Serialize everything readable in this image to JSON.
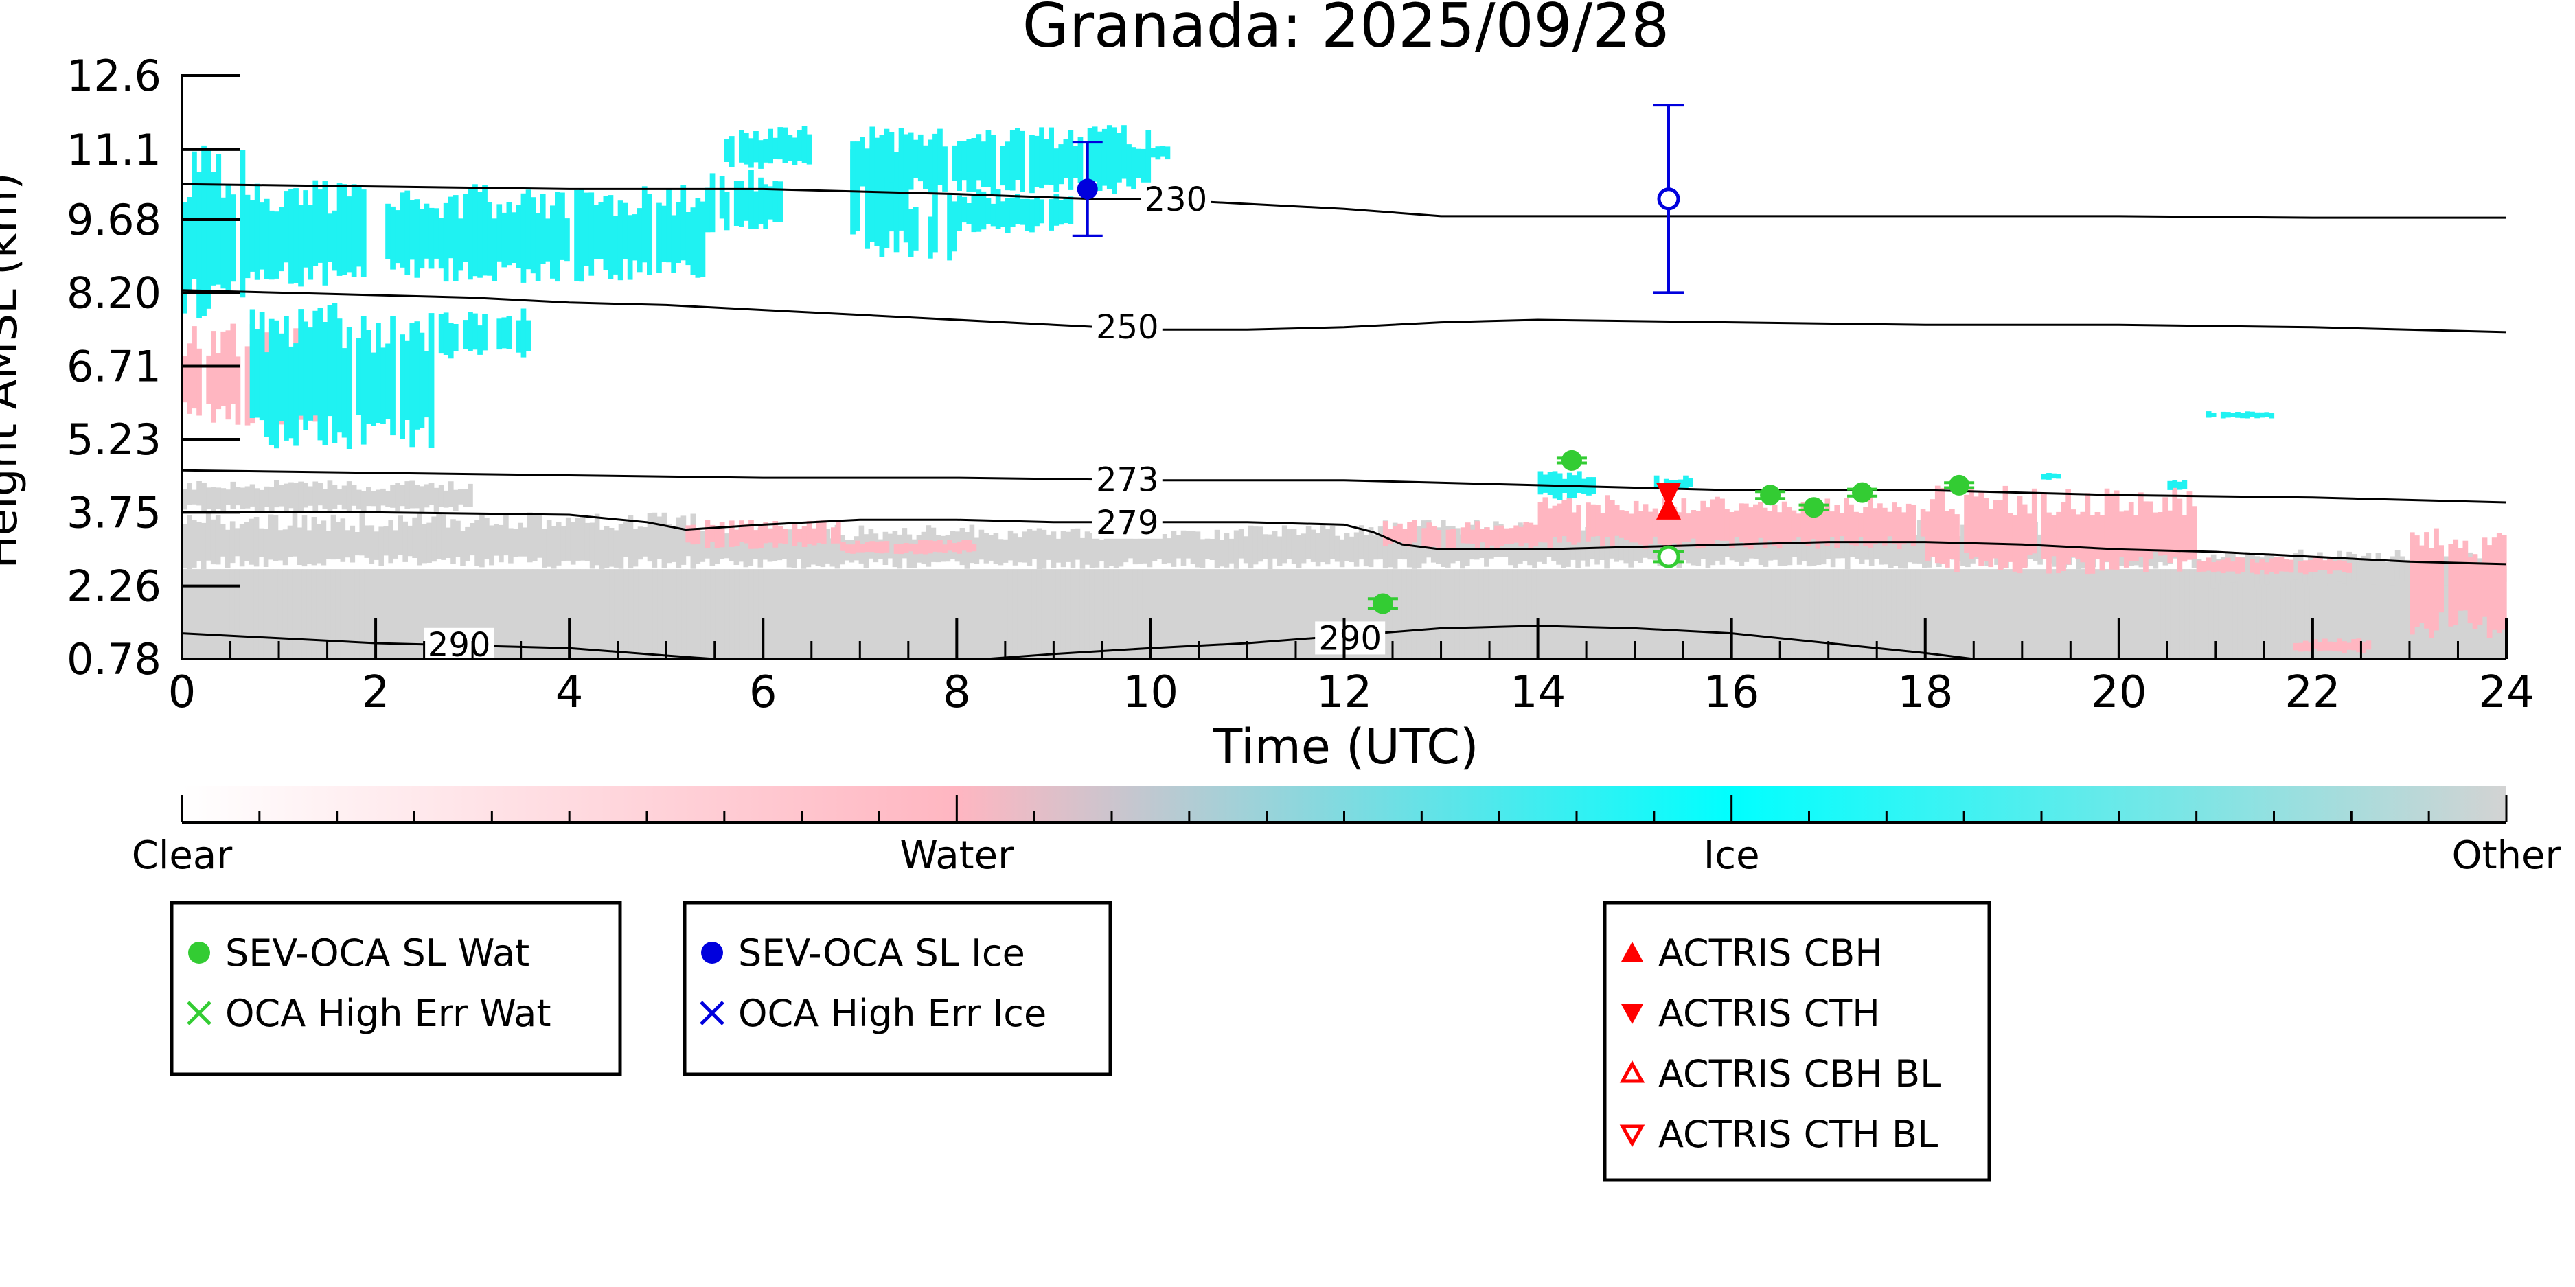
{
  "chart_data": {
    "type": "heatmap",
    "title": "Granada: 2025/09/28",
    "xlabel": "Time (UTC)",
    "ylabel": "Height AMSL (km)",
    "xlim": [
      0,
      24
    ],
    "ylim": [
      0.78,
      12.6
    ],
    "x_ticks": [
      0,
      2,
      4,
      6,
      8,
      10,
      12,
      14,
      16,
      18,
      20,
      22,
      24
    ],
    "y_ticks": [
      "0.78",
      "2.26",
      "3.75",
      "5.23",
      "6.71",
      "8.20",
      "9.68",
      "11.1",
      "12.6"
    ],
    "colorbar": {
      "labels": [
        "Clear",
        "Water",
        "Ice",
        "Other"
      ],
      "colors": [
        "#ffffff",
        "#ffb6c1",
        "#00ffff",
        "#d3d3d3"
      ]
    },
    "category_colors": {
      "water": "#ffb6c1",
      "ice": "#1ff2f2",
      "other": "#d3d3d3"
    },
    "isotherms": [
      {
        "label": "230",
        "points": [
          [
            0,
            10.4
          ],
          [
            2,
            10.35
          ],
          [
            4,
            10.3
          ],
          [
            6,
            10.3
          ],
          [
            8,
            10.2
          ],
          [
            9.4,
            10.1
          ],
          [
            10,
            10.1
          ],
          [
            11,
            10.0
          ],
          [
            12,
            9.9
          ],
          [
            13,
            9.75
          ],
          [
            14,
            9.75
          ],
          [
            16,
            9.75
          ],
          [
            18,
            9.75
          ],
          [
            20,
            9.75
          ],
          [
            22,
            9.72
          ],
          [
            24,
            9.72
          ]
        ],
        "label_at": 9.9
      },
      {
        "label": "250",
        "points": [
          [
            0,
            8.25
          ],
          [
            1,
            8.2
          ],
          [
            2,
            8.15
          ],
          [
            3,
            8.1
          ],
          [
            4,
            8.0
          ],
          [
            5,
            7.95
          ],
          [
            6,
            7.85
          ],
          [
            7,
            7.75
          ],
          [
            8,
            7.65
          ],
          [
            9,
            7.55
          ],
          [
            10,
            7.45
          ],
          [
            11,
            7.45
          ],
          [
            12,
            7.5
          ],
          [
            13,
            7.6
          ],
          [
            14,
            7.65
          ],
          [
            16,
            7.6
          ],
          [
            18,
            7.55
          ],
          [
            20,
            7.55
          ],
          [
            22,
            7.5
          ],
          [
            24,
            7.4
          ]
        ],
        "label_at": 9.4
      },
      {
        "label": "273",
        "points": [
          [
            0,
            4.6
          ],
          [
            2,
            4.55
          ],
          [
            4,
            4.5
          ],
          [
            6,
            4.45
          ],
          [
            8,
            4.45
          ],
          [
            10,
            4.4
          ],
          [
            12,
            4.4
          ],
          [
            14,
            4.3
          ],
          [
            16,
            4.2
          ],
          [
            18,
            4.2
          ],
          [
            20,
            4.1
          ],
          [
            22,
            4.05
          ],
          [
            24,
            3.95
          ]
        ],
        "label_at": 9.4
      },
      {
        "label": "279",
        "points": [
          [
            0,
            3.75
          ],
          [
            2,
            3.75
          ],
          [
            4,
            3.7
          ],
          [
            4.8,
            3.55
          ],
          [
            5.2,
            3.4
          ],
          [
            6,
            3.5
          ],
          [
            7,
            3.6
          ],
          [
            8,
            3.6
          ],
          [
            9,
            3.55
          ],
          [
            10,
            3.55
          ],
          [
            11,
            3.55
          ],
          [
            12,
            3.5
          ],
          [
            12.3,
            3.35
          ],
          [
            12.6,
            3.1
          ],
          [
            13,
            3.0
          ],
          [
            14,
            3.0
          ],
          [
            15,
            3.05
          ],
          [
            16,
            3.1
          ],
          [
            17,
            3.15
          ],
          [
            18,
            3.15
          ],
          [
            19,
            3.1
          ],
          [
            20,
            3.0
          ],
          [
            21,
            2.95
          ],
          [
            22,
            2.85
          ],
          [
            23,
            2.75
          ],
          [
            24,
            2.7
          ]
        ],
        "label_at": 9.4
      },
      {
        "label": "290",
        "points": [
          [
            0,
            1.3
          ],
          [
            1,
            1.2
          ],
          [
            2,
            1.1
          ],
          [
            3,
            1.05
          ],
          [
            4,
            1.0
          ],
          [
            5,
            0.85
          ],
          [
            5.5,
            0.78
          ]
        ],
        "label_at": 2.5
      },
      {
        "label": "290",
        "points": [
          [
            8.3,
            0.78
          ],
          [
            9,
            0.88
          ],
          [
            10,
            1.0
          ],
          [
            11,
            1.1
          ],
          [
            12,
            1.25
          ],
          [
            13,
            1.4
          ],
          [
            14,
            1.45
          ],
          [
            15,
            1.4
          ],
          [
            16,
            1.3
          ],
          [
            17,
            1.1
          ],
          [
            18,
            0.9
          ],
          [
            18.5,
            0.78
          ]
        ],
        "label_at": 11.7
      }
    ],
    "series": [
      {
        "name": "SEV-OCA SL Wat",
        "color": "#33cc33",
        "marker": "circle-filled",
        "points": [
          [
            12.4,
            1.9,
            0.1
          ],
          [
            14.35,
            4.8,
            0.05
          ],
          [
            16.4,
            4.1,
            0.07
          ],
          [
            16.85,
            3.85,
            0.05
          ],
          [
            17.35,
            4.15,
            0.07
          ],
          [
            18.35,
            4.3,
            0.05
          ]
        ]
      },
      {
        "name": "OCA High Err Wat",
        "color": "#33cc33",
        "marker": "x",
        "points": []
      },
      {
        "name": "SEV-OCA SL Ice",
        "color": "#0000dd",
        "marker": "circle-filled",
        "points": [
          [
            9.35,
            10.3,
            0.95
          ]
        ]
      },
      {
        "name": "OCA High Err Ice",
        "color": "#0000dd",
        "marker": "x",
        "points": []
      },
      {
        "name": "ACTRIS CBH",
        "color": "#ff0000",
        "marker": "triangle-up",
        "points": [
          [
            15.35,
            3.8
          ]
        ]
      },
      {
        "name": "ACTRIS CTH",
        "color": "#ff0000",
        "marker": "triangle-down",
        "points": [
          [
            15.35,
            4.15
          ]
        ]
      },
      {
        "name": "ACTRIS CBH BL",
        "color": "#ff0000",
        "marker": "triangle-up-open",
        "points": []
      },
      {
        "name": "ACTRIS CTH BL",
        "color": "#ff0000",
        "marker": "triangle-down-open",
        "points": []
      }
    ],
    "extra_markers": [
      {
        "color": "#0000dd",
        "marker": "circle-open",
        "x": 15.35,
        "y": 10.1,
        "err": 1.9
      },
      {
        "color": "#33cc33",
        "marker": "circle-open",
        "x": 15.35,
        "y": 2.85,
        "err": 0.1
      }
    ],
    "regions": [
      {
        "cat": "other",
        "x0": 0,
        "x1": 24,
        "y0": 0.78,
        "y1": 2.6
      },
      {
        "cat": "other",
        "x0": 0,
        "x1": 5.3,
        "y0": 2.6,
        "y1": 3.75
      },
      {
        "cat": "other",
        "x0": 5.3,
        "x1": 12.3,
        "y0": 2.6,
        "y1": 3.5
      },
      {
        "cat": "other",
        "x0": 12.3,
        "x1": 20.8,
        "y0": 2.6,
        "y1": 3.6
      },
      {
        "cat": "other",
        "x0": 20.8,
        "x1": 24,
        "y0": 2.2,
        "y1": 3.0
      },
      {
        "cat": "other",
        "x0": 0,
        "x1": 3.0,
        "y0": 3.75,
        "y1": 4.4
      },
      {
        "cat": "water",
        "x0": 5.2,
        "x1": 6.8,
        "y0": 3.0,
        "y1": 3.6
      },
      {
        "cat": "water",
        "x0": 6.8,
        "x1": 8.2,
        "y0": 2.9,
        "y1": 3.2
      },
      {
        "cat": "water",
        "x0": 12.4,
        "x1": 14.0,
        "y0": 3.0,
        "y1": 3.6
      },
      {
        "cat": "water",
        "x0": 14.0,
        "x1": 18.0,
        "y0": 3.0,
        "y1": 4.1
      },
      {
        "cat": "water",
        "x0": 18.0,
        "x1": 20.8,
        "y0": 2.5,
        "y1": 4.3
      },
      {
        "cat": "water",
        "x0": 20.8,
        "x1": 22.4,
        "y0": 2.5,
        "y1": 2.85
      },
      {
        "cat": "water",
        "x0": 21.8,
        "x1": 22.6,
        "y0": 0.9,
        "y1": 1.2
      },
      {
        "cat": "water",
        "x0": 23.0,
        "x1": 24,
        "y0": 1.2,
        "y1": 3.5
      },
      {
        "cat": "water",
        "x0": 0,
        "x1": 1.5,
        "y0": 5.5,
        "y1": 7.6
      },
      {
        "cat": "ice",
        "x0": 0,
        "x1": 0.7,
        "y0": 7.6,
        "y1": 11.3
      },
      {
        "cat": "ice",
        "x0": 0.7,
        "x1": 2.6,
        "y0": 5.0,
        "y1": 8.0
      },
      {
        "cat": "ice",
        "x0": 2.6,
        "x1": 3.6,
        "y0": 6.8,
        "y1": 7.9
      },
      {
        "cat": "ice",
        "x0": 0.7,
        "x1": 1.9,
        "y0": 8.3,
        "y1": 10.5
      },
      {
        "cat": "ice",
        "x0": 2.1,
        "x1": 5.4,
        "y0": 8.4,
        "y1": 10.4
      },
      {
        "cat": "ice",
        "x0": 5.4,
        "x1": 6.2,
        "y0": 9.4,
        "y1": 10.7
      },
      {
        "cat": "ice",
        "x0": 5.6,
        "x1": 6.5,
        "y0": 10.7,
        "y1": 11.6
      },
      {
        "cat": "ice",
        "x0": 6.9,
        "x1": 7.5,
        "y0": 8.9,
        "y1": 11.2
      },
      {
        "cat": "ice",
        "x0": 6.9,
        "x1": 10.0,
        "y0": 10.2,
        "y1": 11.6
      },
      {
        "cat": "ice",
        "x0": 7.5,
        "x1": 8.0,
        "y0": 8.8,
        "y1": 10.2
      },
      {
        "cat": "ice",
        "x0": 8.0,
        "x1": 9.2,
        "y0": 9.4,
        "y1": 10.3
      },
      {
        "cat": "ice",
        "x0": 10.0,
        "x1": 10.2,
        "y0": 10.9,
        "y1": 11.2
      },
      {
        "cat": "ice",
        "x0": 14.0,
        "x1": 14.6,
        "y0": 4.0,
        "y1": 4.6
      },
      {
        "cat": "ice",
        "x0": 15.2,
        "x1": 15.6,
        "y0": 4.2,
        "y1": 4.5
      },
      {
        "cat": "ice",
        "x0": 19.2,
        "x1": 19.4,
        "y0": 4.4,
        "y1": 4.55
      },
      {
        "cat": "ice",
        "x0": 20.5,
        "x1": 20.7,
        "y0": 4.2,
        "y1": 4.4
      },
      {
        "cat": "ice",
        "x0": 20.9,
        "x1": 21.6,
        "y0": 5.65,
        "y1": 5.8
      }
    ],
    "legends": [
      {
        "entries": [
          "SEV-OCA SL Wat",
          "OCA High Err Wat"
        ]
      },
      {
        "entries": [
          "SEV-OCA SL Ice",
          "OCA High Err Ice"
        ]
      },
      {
        "entries": [
          "ACTRIS CBH",
          "ACTRIS CTH",
          "ACTRIS CBH BL",
          "ACTRIS CTH BL"
        ]
      }
    ]
  }
}
